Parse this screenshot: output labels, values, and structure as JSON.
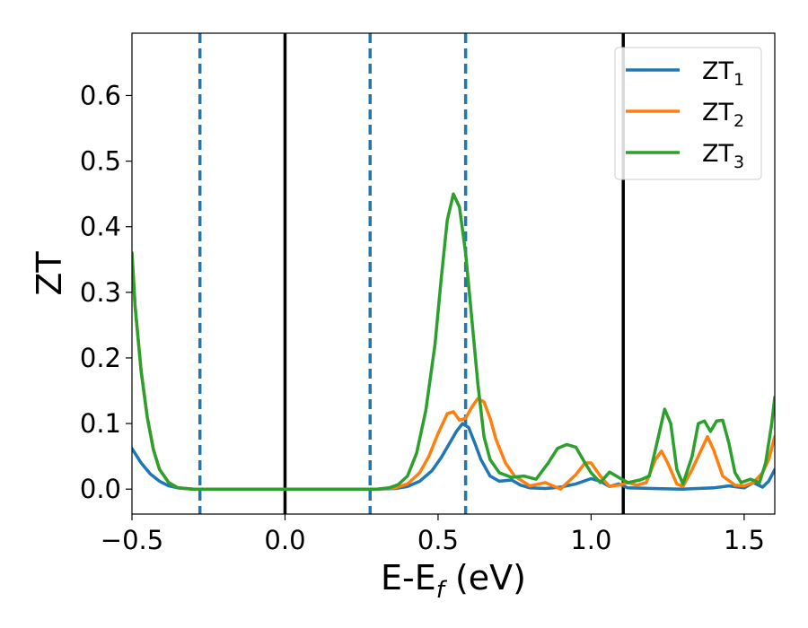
{
  "chart_data": {
    "type": "line",
    "title": "",
    "xlabel": "E-E",
    "xlabel_sub": "f",
    "xlabel_unit": " (eV)",
    "ylabel": "ZT",
    "xlim": [
      -0.5,
      1.6
    ],
    "ylim": [
      -0.038,
      0.695
    ],
    "xticks": [
      -0.5,
      0.0,
      0.5,
      1.0,
      1.5
    ],
    "xtick_labels": [
      "−0.5",
      "0.0",
      "0.5",
      "1.0",
      "1.5"
    ],
    "yticks": [
      0.0,
      0.1,
      0.2,
      0.3,
      0.4,
      0.5,
      0.6
    ],
    "ytick_labels": [
      "0.0",
      "0.1",
      "0.2",
      "0.3",
      "0.4",
      "0.5",
      "0.6"
    ],
    "grid": false,
    "legend_position": "top-right",
    "vlines": [
      {
        "x": -0.278,
        "style": "dashed",
        "color": "#1f77b4"
      },
      {
        "x": 0.0,
        "style": "solid",
        "color": "#000000"
      },
      {
        "x": 0.278,
        "style": "dashed",
        "color": "#1f77b4"
      },
      {
        "x": 0.59,
        "style": "dashed",
        "color": "#1f77b4"
      },
      {
        "x": 1.105,
        "style": "solid",
        "color": "#000000"
      }
    ],
    "series": [
      {
        "name": "ZT",
        "sub": "1",
        "color": "#1f77b4",
        "points": [
          [
            -0.5,
            0.062
          ],
          [
            -0.47,
            0.04
          ],
          [
            -0.44,
            0.023
          ],
          [
            -0.41,
            0.012
          ],
          [
            -0.38,
            0.005
          ],
          [
            -0.35,
            0.002
          ],
          [
            -0.3,
            0.0
          ],
          [
            0.3,
            0.0
          ],
          [
            0.36,
            0.001
          ],
          [
            0.4,
            0.004
          ],
          [
            0.44,
            0.012
          ],
          [
            0.48,
            0.028
          ],
          [
            0.51,
            0.048
          ],
          [
            0.54,
            0.072
          ],
          [
            0.56,
            0.088
          ],
          [
            0.58,
            0.1
          ],
          [
            0.6,
            0.094
          ],
          [
            0.62,
            0.07
          ],
          [
            0.64,
            0.045
          ],
          [
            0.67,
            0.02
          ],
          [
            0.7,
            0.012
          ],
          [
            0.74,
            0.014
          ],
          [
            0.77,
            0.006
          ],
          [
            0.8,
            0.002
          ],
          [
            0.85,
            0.001
          ],
          [
            0.9,
            0.003
          ],
          [
            0.95,
            0.008
          ],
          [
            1.0,
            0.016
          ],
          [
            1.03,
            0.012
          ],
          [
            1.06,
            0.004
          ],
          [
            1.09,
            0.008
          ],
          [
            1.12,
            0.002
          ],
          [
            1.2,
            0.001
          ],
          [
            1.3,
            0.0
          ],
          [
            1.4,
            0.002
          ],
          [
            1.45,
            0.005
          ],
          [
            1.5,
            0.002
          ],
          [
            1.53,
            0.01
          ],
          [
            1.56,
            0.003
          ],
          [
            1.58,
            0.012
          ],
          [
            1.6,
            0.03
          ]
        ]
      },
      {
        "name": "ZT",
        "sub": "2",
        "color": "#ff7f0e",
        "points": [
          [
            -0.5,
            0.36
          ],
          [
            -0.49,
            0.28
          ],
          [
            -0.47,
            0.18
          ],
          [
            -0.45,
            0.11
          ],
          [
            -0.43,
            0.06
          ],
          [
            -0.41,
            0.03
          ],
          [
            -0.38,
            0.01
          ],
          [
            -0.35,
            0.002
          ],
          [
            -0.3,
            0.0
          ],
          [
            0.3,
            0.0
          ],
          [
            0.36,
            0.002
          ],
          [
            0.4,
            0.008
          ],
          [
            0.44,
            0.025
          ],
          [
            0.47,
            0.05
          ],
          [
            0.5,
            0.085
          ],
          [
            0.53,
            0.115
          ],
          [
            0.55,
            0.118
          ],
          [
            0.57,
            0.105
          ],
          [
            0.59,
            0.108
          ],
          [
            0.61,
            0.125
          ],
          [
            0.63,
            0.138
          ],
          [
            0.65,
            0.133
          ],
          [
            0.67,
            0.108
          ],
          [
            0.69,
            0.075
          ],
          [
            0.72,
            0.04
          ],
          [
            0.75,
            0.02
          ],
          [
            0.8,
            0.005
          ],
          [
            0.85,
            0.01
          ],
          [
            0.9,
            0.0
          ],
          [
            0.95,
            0.022
          ],
          [
            0.98,
            0.04
          ],
          [
            1.0,
            0.04
          ],
          [
            1.03,
            0.02
          ],
          [
            1.06,
            0.004
          ],
          [
            1.09,
            0.006
          ],
          [
            1.12,
            0.01
          ],
          [
            1.15,
            0.006
          ],
          [
            1.18,
            0.01
          ],
          [
            1.21,
            0.045
          ],
          [
            1.23,
            0.058
          ],
          [
            1.25,
            0.04
          ],
          [
            1.28,
            0.008
          ],
          [
            1.3,
            0.004
          ],
          [
            1.33,
            0.03
          ],
          [
            1.36,
            0.06
          ],
          [
            1.38,
            0.08
          ],
          [
            1.4,
            0.06
          ],
          [
            1.43,
            0.02
          ],
          [
            1.47,
            0.006
          ],
          [
            1.5,
            0.005
          ],
          [
            1.53,
            0.01
          ],
          [
            1.56,
            0.025
          ],
          [
            1.58,
            0.045
          ],
          [
            1.6,
            0.08
          ]
        ]
      },
      {
        "name": "ZT",
        "sub": "3",
        "color": "#2ca02c",
        "points": [
          [
            -0.5,
            0.36
          ],
          [
            -0.49,
            0.28
          ],
          [
            -0.47,
            0.18
          ],
          [
            -0.45,
            0.11
          ],
          [
            -0.43,
            0.06
          ],
          [
            -0.41,
            0.03
          ],
          [
            -0.38,
            0.01
          ],
          [
            -0.35,
            0.002
          ],
          [
            -0.3,
            0.0
          ],
          [
            0.3,
            0.0
          ],
          [
            0.34,
            0.002
          ],
          [
            0.37,
            0.007
          ],
          [
            0.4,
            0.02
          ],
          [
            0.43,
            0.055
          ],
          [
            0.46,
            0.12
          ],
          [
            0.49,
            0.22
          ],
          [
            0.51,
            0.32
          ],
          [
            0.53,
            0.41
          ],
          [
            0.55,
            0.45
          ],
          [
            0.57,
            0.43
          ],
          [
            0.59,
            0.36
          ],
          [
            0.61,
            0.26
          ],
          [
            0.63,
            0.16
          ],
          [
            0.65,
            0.08
          ],
          [
            0.67,
            0.045
          ],
          [
            0.7,
            0.025
          ],
          [
            0.74,
            0.018
          ],
          [
            0.78,
            0.02
          ],
          [
            0.82,
            0.015
          ],
          [
            0.86,
            0.04
          ],
          [
            0.89,
            0.062
          ],
          [
            0.92,
            0.068
          ],
          [
            0.95,
            0.064
          ],
          [
            0.98,
            0.04
          ],
          [
            1.0,
            0.025
          ],
          [
            1.03,
            0.01
          ],
          [
            1.06,
            0.026
          ],
          [
            1.09,
            0.018
          ],
          [
            1.12,
            0.01
          ],
          [
            1.16,
            0.014
          ],
          [
            1.19,
            0.02
          ],
          [
            1.22,
            0.08
          ],
          [
            1.24,
            0.122
          ],
          [
            1.26,
            0.1
          ],
          [
            1.28,
            0.03
          ],
          [
            1.3,
            0.008
          ],
          [
            1.33,
            0.05
          ],
          [
            1.35,
            0.1
          ],
          [
            1.37,
            0.104
          ],
          [
            1.39,
            0.088
          ],
          [
            1.41,
            0.104
          ],
          [
            1.43,
            0.105
          ],
          [
            1.45,
            0.07
          ],
          [
            1.47,
            0.025
          ],
          [
            1.49,
            0.01
          ],
          [
            1.52,
            0.015
          ],
          [
            1.55,
            0.01
          ],
          [
            1.57,
            0.04
          ],
          [
            1.59,
            0.1
          ],
          [
            1.6,
            0.14
          ]
        ]
      }
    ]
  }
}
